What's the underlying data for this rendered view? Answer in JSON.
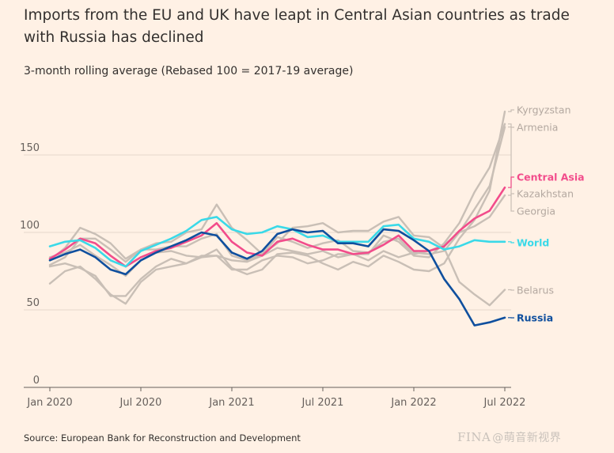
{
  "header": {
    "title": "Imports from the EU and UK have leapt in Central Asian countries as trade with Russia has declined",
    "subtitle": "3-month rolling average (Rebased 100 = 2017-19 average)"
  },
  "footer": {
    "source": "Source: European Bank for Reconstruction and Development",
    "logo": "FINA",
    "watermark": "@萌音新视界"
  },
  "colors": {
    "background": "#fff1e5",
    "grey": "#c9bfb6",
    "russia": "#0f4f9e",
    "central_asia": "#f24c8b",
    "world": "#3ad9e8"
  },
  "chart_data": {
    "type": "line",
    "title": "Imports from the EU and UK have leapt in Central Asian countries as trade with Russia has declined",
    "subtitle": "3-month rolling average (Rebased 100 = 2017-19 average)",
    "xlabel": "",
    "ylabel": "",
    "ylim": [
      0,
      180
    ],
    "y_ticks": [
      0,
      50,
      100,
      150
    ],
    "x_tick_labels": [
      "Jan 2020",
      "Jul 2020",
      "Jan 2021",
      "Jul 2021",
      "Jan 2022",
      "Jul 2022"
    ],
    "x_tick_months": [
      0,
      6,
      12,
      18,
      24,
      30
    ],
    "grid": true,
    "legend": "direct labels at right",
    "x": [
      "Jan 2020",
      "Feb 2020",
      "Mar 2020",
      "Apr 2020",
      "May 2020",
      "Jun 2020",
      "Jul 2020",
      "Aug 2020",
      "Sep 2020",
      "Oct 2020",
      "Nov 2020",
      "Dec 2020",
      "Jan 2021",
      "Feb 2021",
      "Mar 2021",
      "Apr 2021",
      "May 2021",
      "Jun 2021",
      "Jul 2021",
      "Aug 2021",
      "Sep 2021",
      "Oct 2021",
      "Nov 2021",
      "Dec 2021",
      "Jan 2022",
      "Feb 2022",
      "Mar 2022",
      "Apr 2022",
      "May 2022",
      "Jun 2022",
      "Jul 2022"
    ],
    "series": [
      {
        "name": "Kyrgyzstan",
        "color": "grey",
        "values": [
          67,
          75,
          78,
          70,
          60,
          54,
          68,
          76,
          78,
          80,
          84,
          89,
          77,
          73,
          76,
          86,
          87,
          85,
          80,
          76,
          81,
          78,
          85,
          81,
          76,
          75,
          80,
          96,
          108,
          127,
          178
        ]
      },
      {
        "name": "Armenia",
        "color": "grey",
        "values": [
          84,
          87,
          92,
          85,
          79,
          72,
          82,
          87,
          88,
          85,
          84,
          85,
          82,
          81,
          85,
          90,
          88,
          86,
          88,
          84,
          86,
          82,
          88,
          84,
          87,
          86,
          88,
          100,
          115,
          130,
          168
        ]
      },
      {
        "name": "Kazakhstan",
        "color": "grey",
        "values": [
          79,
          84,
          96,
          96,
          89,
          81,
          89,
          89,
          91,
          91,
          96,
          99,
          85,
          82,
          86,
          97,
          94,
          90,
          93,
          95,
          88,
          87,
          94,
          96,
          86,
          88,
          92,
          100,
          104,
          110,
          124
        ]
      },
      {
        "name": "Georgia",
        "color": "grey",
        "values": [
          78,
          80,
          77,
          72,
          59,
          59,
          70,
          78,
          83,
          80,
          85,
          85,
          76,
          76,
          82,
          85,
          84,
          80,
          82,
          86,
          86,
          86,
          98,
          94,
          85,
          84,
          93,
          106,
          126,
          142,
          170
        ]
      },
      {
        "name": "Belarus",
        "color": "grey",
        "values": [
          82,
          90,
          103,
          99,
          93,
          83,
          89,
          93,
          94,
          100,
          102,
          118,
          103,
          95,
          86,
          93,
          103,
          104,
          106,
          100,
          101,
          101,
          107,
          110,
          98,
          97,
          90,
          68,
          60,
          53,
          63
        ]
      },
      {
        "name": "Central Asia",
        "color": "central_asia",
        "values": [
          83,
          89,
          96,
          93,
          85,
          78,
          84,
          88,
          90,
          94,
          98,
          106,
          94,
          87,
          85,
          94,
          96,
          92,
          89,
          89,
          86,
          87,
          92,
          98,
          88,
          88,
          91,
          101,
          109,
          114,
          129
        ]
      },
      {
        "name": "World",
        "color": "world",
        "values": [
          91,
          94,
          95,
          90,
          82,
          78,
          88,
          92,
          96,
          101,
          108,
          110,
          102,
          99,
          100,
          104,
          102,
          97,
          98,
          94,
          94,
          94,
          104,
          105,
          96,
          94,
          89,
          91,
          95,
          94,
          94
        ]
      },
      {
        "name": "Russia",
        "color": "russia",
        "values": [
          82,
          86,
          89,
          84,
          76,
          73,
          82,
          87,
          91,
          95,
          100,
          98,
          87,
          83,
          88,
          99,
          102,
          100,
          101,
          93,
          93,
          91,
          102,
          101,
          95,
          88,
          70,
          57,
          40,
          42,
          45
        ]
      }
    ]
  }
}
